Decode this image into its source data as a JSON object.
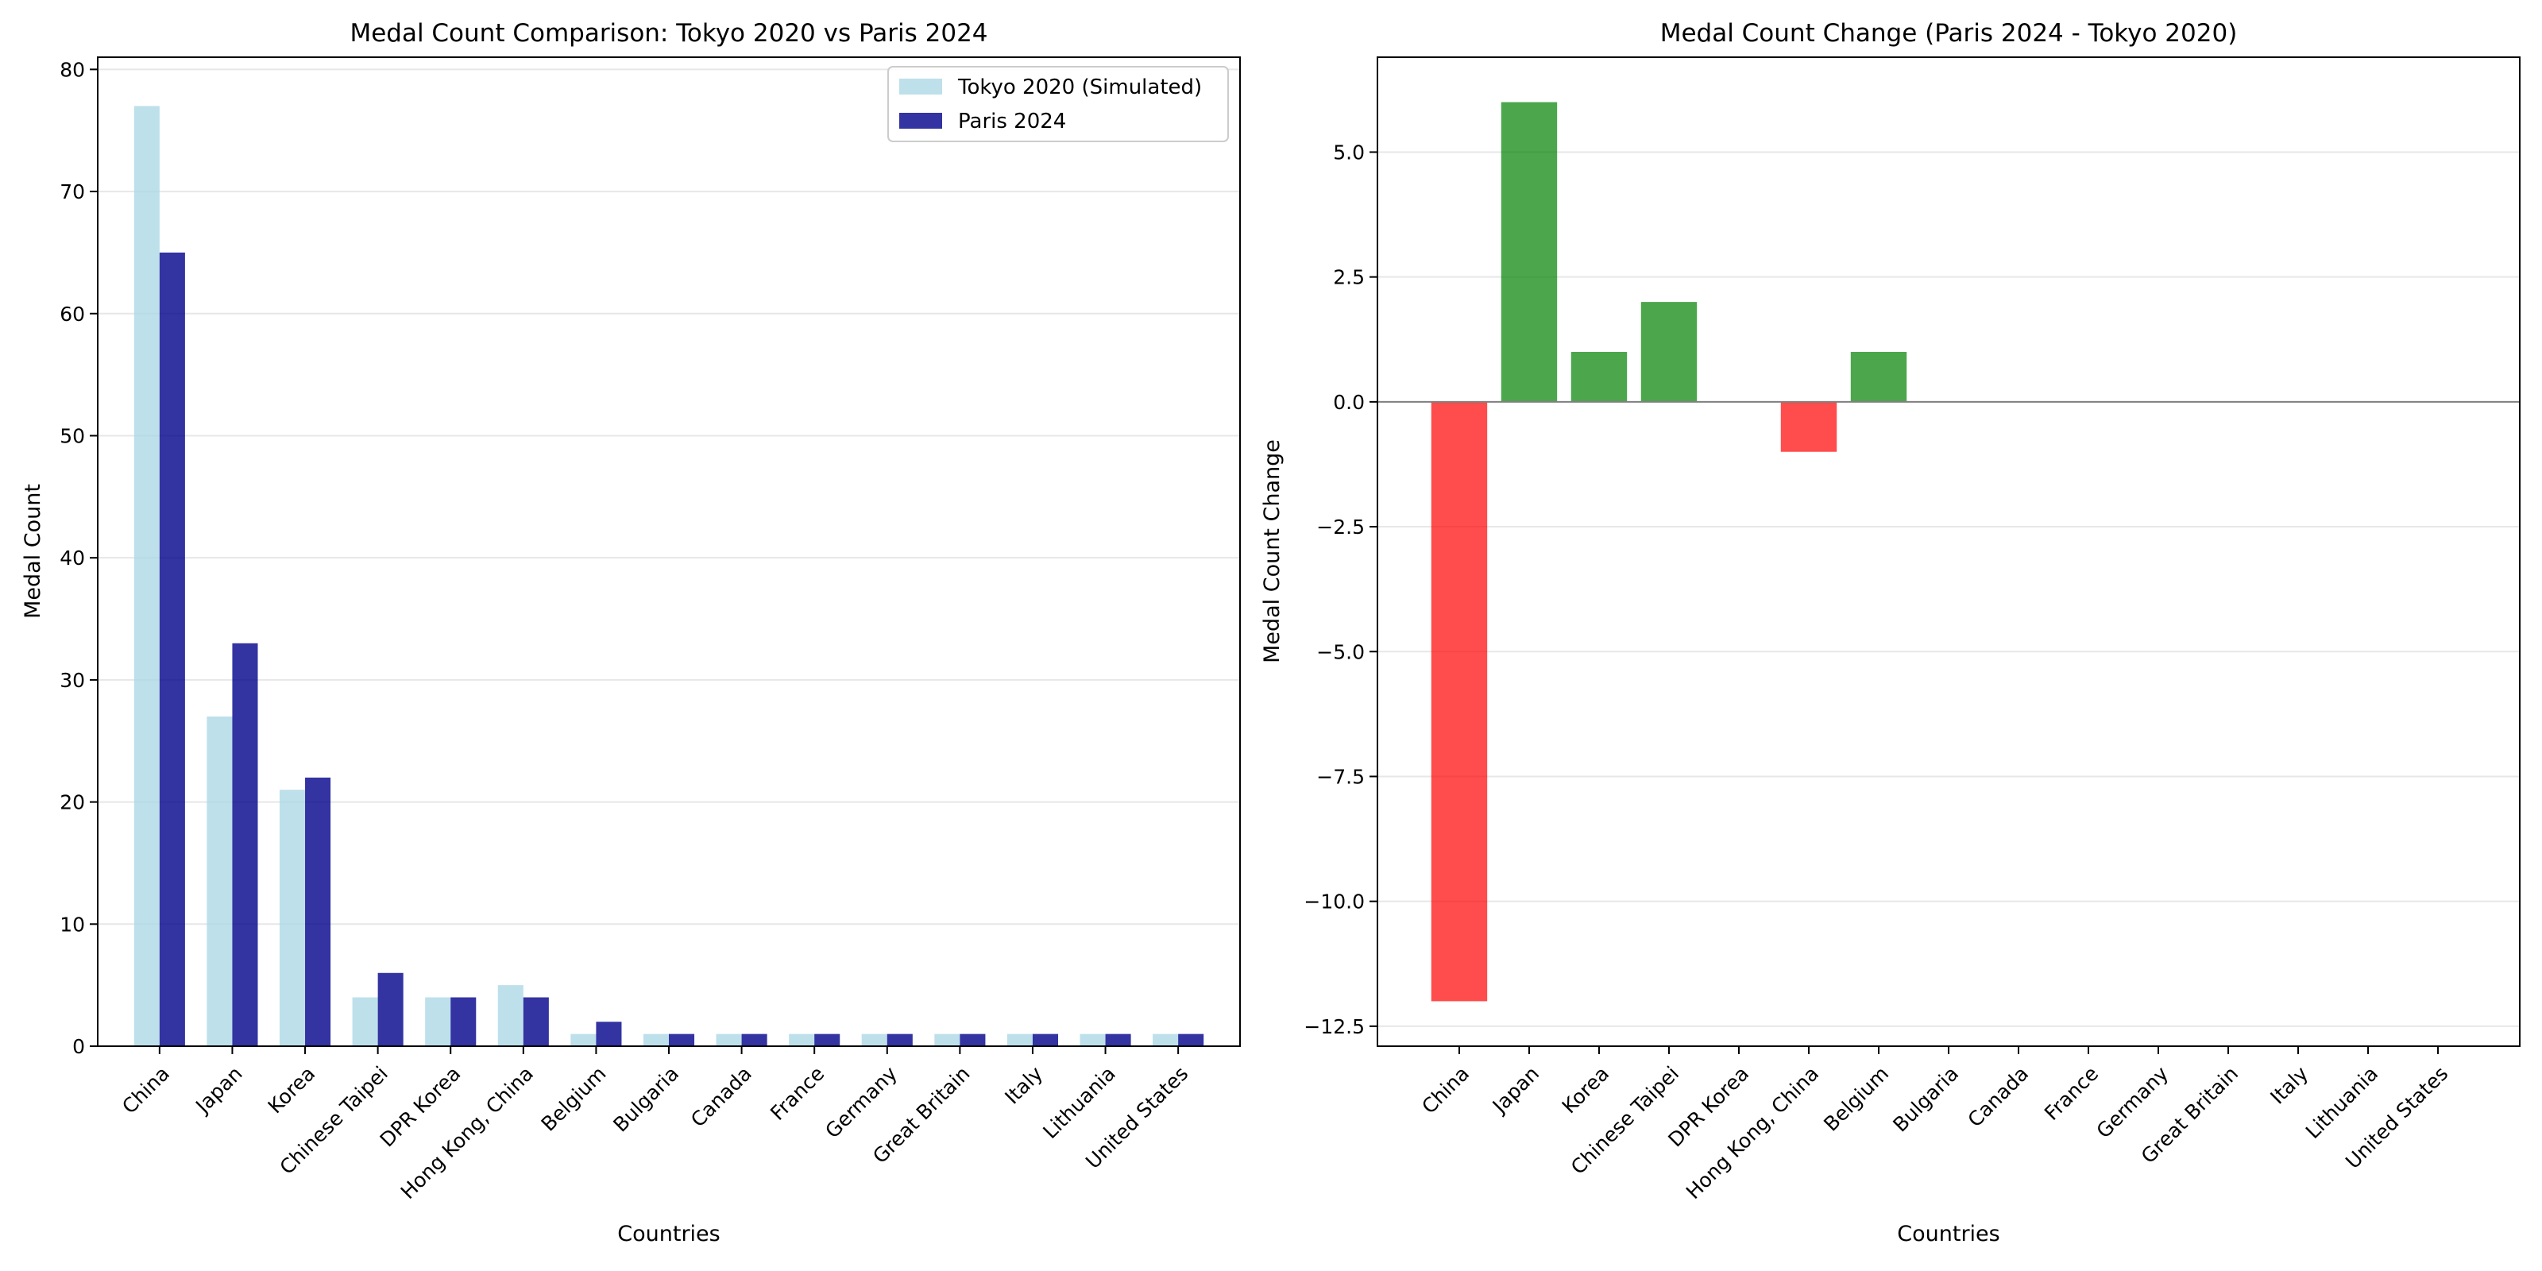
{
  "chart_data": [
    {
      "type": "bar",
      "title": "Medal Count Comparison: Tokyo 2020 vs Paris 2024",
      "xlabel": "Countries",
      "ylabel": "Medal Count",
      "categories": [
        "China",
        "Japan",
        "Korea",
        "Chinese Taipei",
        "DPR Korea",
        "Hong Kong, China",
        "Belgium",
        "Bulgaria",
        "Canada",
        "France",
        "Germany",
        "Great Britain",
        "Italy",
        "Lithuania",
        "United States"
      ],
      "series": [
        {
          "name": "Tokyo 2020 (Simulated)",
          "color": "#add8e6",
          "values": [
            77,
            27,
            21,
            4,
            4,
            5,
            1,
            1,
            1,
            1,
            1,
            1,
            1,
            1,
            1
          ]
        },
        {
          "name": "Paris 2024",
          "color": "#00008b",
          "values": [
            65,
            33,
            22,
            6,
            4,
            4,
            2,
            1,
            1,
            1,
            1,
            1,
            1,
            1,
            1
          ]
        }
      ],
      "ylim": [
        0,
        81
      ],
      "yticks": [
        0,
        10,
        20,
        30,
        40,
        50,
        60,
        70,
        80
      ],
      "ytick_labels": [
        "0",
        "10",
        "20",
        "30",
        "40",
        "50",
        "60",
        "70",
        "80"
      ],
      "grid": "y",
      "legend": "top-right"
    },
    {
      "type": "bar",
      "title": "Medal Count Change (Paris 2024 - Tokyo 2020)",
      "xlabel": "Countries",
      "ylabel": "Medal Count Change",
      "categories": [
        "China",
        "Japan",
        "Korea",
        "Chinese Taipei",
        "DPR Korea",
        "Hong Kong, China",
        "Belgium",
        "Bulgaria",
        "Canada",
        "France",
        "Germany",
        "Great Britain",
        "Italy",
        "Lithuania",
        "United States"
      ],
      "values": [
        -12,
        6,
        1,
        2,
        0,
        -1,
        1,
        0,
        0,
        0,
        0,
        0,
        0,
        0,
        0
      ],
      "positive_color": "#008000",
      "negative_color": "#ff0000",
      "ylim": [
        -12.9,
        6.9
      ],
      "yticks": [
        -12.5,
        -10,
        -7.5,
        -5,
        -2.5,
        0,
        2.5,
        5
      ],
      "ytick_labels": [
        "−12.5",
        "−10.0",
        "−7.5",
        "−5.0",
        "−2.5",
        "0.0",
        "2.5",
        "5.0"
      ],
      "grid": "y",
      "baseline": 0
    }
  ]
}
